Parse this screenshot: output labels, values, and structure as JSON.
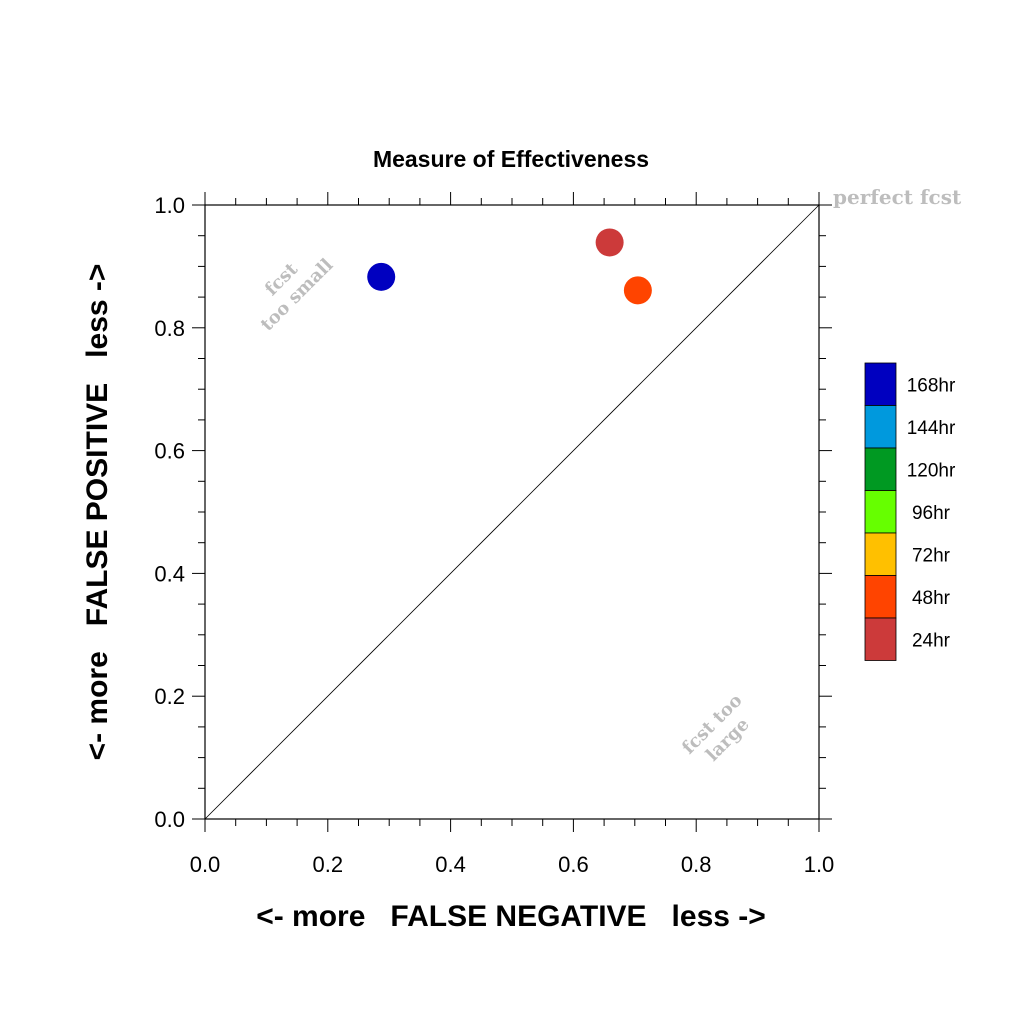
{
  "chart_data": {
    "type": "scatter",
    "title": "Measure of Effectiveness",
    "xlabel": "<- more   FALSE NEGATIVE   less ->",
    "ylabel": "<- more   FALSE POSITIVE   less ->",
    "xlim": [
      0,
      1
    ],
    "ylim": [
      0,
      1
    ],
    "x_ticks": [
      "0.0",
      "0.2",
      "0.4",
      "0.6",
      "0.8",
      "1.0"
    ],
    "y_ticks": [
      "0.0",
      "0.2",
      "0.4",
      "0.6",
      "0.8",
      "1.0"
    ],
    "grid": false,
    "reference_line": {
      "from": [
        0,
        0
      ],
      "to": [
        1,
        1
      ]
    },
    "annotations": {
      "perfect": "perfect fcst",
      "too_small_line1": "fcst",
      "too_small_line2": "too small",
      "too_large_line1": "fcst too",
      "too_large_line2": "large"
    },
    "legend": {
      "placement": "right",
      "entries": [
        {
          "label": "168hr",
          "color": "#0000c0"
        },
        {
          "label": "144hr",
          "color": "#0099dd"
        },
        {
          "label": "120hr",
          "color": "#009922"
        },
        {
          "label": "96hr",
          "color": "#66ff00"
        },
        {
          "label": "72hr",
          "color": "#ffc000"
        },
        {
          "label": "48hr",
          "color": "#ff4400"
        },
        {
          "label": "24hr",
          "color": "#cc3a3a"
        }
      ]
    },
    "points": [
      {
        "series": "168hr",
        "x": 0.287,
        "y": 0.883,
        "color": "#0000c0"
      },
      {
        "series": "24hr",
        "x": 0.659,
        "y": 0.939,
        "color": "#cc3a3a"
      },
      {
        "series": "48hr",
        "x": 0.705,
        "y": 0.861,
        "color": "#ff4400"
      }
    ]
  }
}
